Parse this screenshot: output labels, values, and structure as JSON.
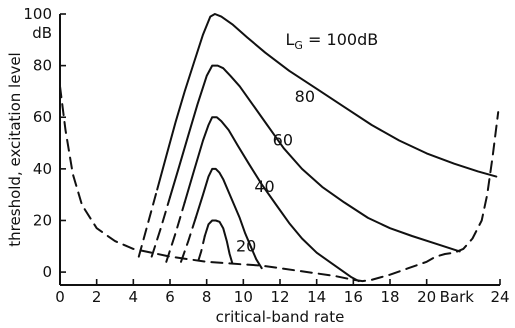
{
  "chart_data": {
    "type": "line",
    "title": "",
    "xlabel": "critical-band rate",
    "ylabel": "threshold, excitation level",
    "xlim": [
      0,
      24
    ],
    "ylim": [
      -5,
      100
    ],
    "x_ticks": [
      0,
      2,
      4,
      6,
      8,
      10,
      12,
      14,
      16,
      18,
      20,
      24
    ],
    "x_tick_labels": [
      "0",
      "2",
      "4",
      "6",
      "8",
      "10",
      "12",
      "14",
      "16",
      "18",
      "20",
      "24"
    ],
    "x_unit_label": "Bark",
    "x_unit_at": 20,
    "y_ticks": [
      0,
      20,
      40,
      60,
      80,
      100
    ],
    "y_tick_labels": [
      "0",
      "20",
      "40",
      "60",
      "80",
      "100"
    ],
    "y_unit_label": "dB",
    "grid": false,
    "threshold_in_quiet": {
      "x": [
        0.0,
        0.3,
        0.7,
        1.2,
        2.0,
        3.0,
        4.0,
        5.0,
        6.0,
        7.0,
        8.0,
        9.0,
        10.0,
        11.0,
        12.0,
        13.0,
        14.0,
        15.0,
        16.0,
        16.5,
        17.0,
        18.0,
        19.0,
        20.0,
        20.5,
        21.0,
        21.5,
        22.0,
        22.5,
        23.0,
        23.3,
        23.6,
        23.9
      ],
      "y": [
        72,
        55,
        38,
        26,
        17,
        12,
        9,
        7.5,
        6,
        5,
        4,
        3.5,
        3,
        2.5,
        1.5,
        0.5,
        -0.5,
        -1.5,
        -3,
        -3.5,
        -3,
        -1,
        1.5,
        4,
        6,
        7,
        7.5,
        9,
        13,
        20,
        30,
        45,
        62
      ]
    },
    "series": [
      {
        "label_text": "20",
        "x": [
          7.55,
          7.7,
          7.9,
          8.1,
          8.3,
          8.5,
          8.7,
          8.9,
          9.1,
          9.25,
          9.4
        ],
        "y": [
          4.5,
          8,
          14,
          18.5,
          20,
          20,
          19.5,
          17,
          12,
          7,
          3.5
        ]
      },
      {
        "label_text": "40",
        "x": [
          6.6,
          7.0,
          7.4,
          7.8,
          8.1,
          8.3,
          8.5,
          8.7,
          8.9,
          9.2,
          9.5,
          9.8,
          10.1,
          10.4,
          10.7,
          11.0
        ],
        "y": [
          4,
          12,
          21,
          30,
          37,
          40,
          40,
          38.5,
          36,
          31,
          26,
          21,
          15,
          10,
          5,
          1.5
        ]
      },
      {
        "label_text": "60",
        "x": [
          5.8,
          6.3,
          6.8,
          7.3,
          7.8,
          8.1,
          8.3,
          8.55,
          8.8,
          9.2,
          9.7,
          10.3,
          11.0,
          11.8,
          12.5,
          13.2,
          14.0,
          14.8,
          15.4,
          15.9,
          16.3
        ],
        "y": [
          4,
          15,
          27,
          39,
          51,
          57,
          60,
          60,
          58.5,
          55,
          49,
          42,
          34,
          26,
          19,
          13,
          7.5,
          3.5,
          0.5,
          -2,
          -3.5
        ]
      },
      {
        "label_text": "80",
        "x": [
          5.0,
          5.5,
          6.0,
          6.5,
          7.0,
          7.5,
          8.0,
          8.3,
          8.6,
          8.9,
          9.3,
          9.8,
          10.5,
          11.3,
          12.2,
          13.2,
          14.3,
          15.5,
          16.8,
          18.0,
          19.2,
          20.5,
          21.8
        ],
        "y": [
          6,
          17,
          29,
          41,
          53,
          65,
          76,
          80,
          80,
          79,
          76,
          72,
          65,
          57,
          48,
          40,
          33,
          27,
          21,
          17,
          14,
          11,
          8
        ]
      },
      {
        "label_text": "L_G = 100dB",
        "x": [
          4.3,
          4.8,
          5.3,
          5.8,
          6.3,
          6.8,
          7.3,
          7.8,
          8.2,
          8.45,
          8.8,
          9.4,
          10.2,
          11.2,
          12.5,
          14.0,
          15.5,
          17.0,
          18.5,
          20.0,
          21.5,
          22.8,
          23.8
        ],
        "y": [
          6,
          19,
          32,
          45,
          58,
          70,
          81,
          92,
          99,
          100,
          99,
          96,
          91,
          85,
          78,
          71,
          64,
          57,
          51,
          46,
          42,
          39,
          37
        ]
      }
    ],
    "curve_labels": [
      {
        "text": "20",
        "x": 9.6,
        "y": 8
      },
      {
        "text": "40",
        "x": 10.6,
        "y": 31
      },
      {
        "text": "60",
        "x": 11.6,
        "y": 49
      },
      {
        "text": "80",
        "x": 12.8,
        "y": 66
      },
      {
        "text_main": "L",
        "text_sub": "G",
        "text_rest": " = 100dB",
        "x": 12.3,
        "y": 88
      }
    ]
  }
}
